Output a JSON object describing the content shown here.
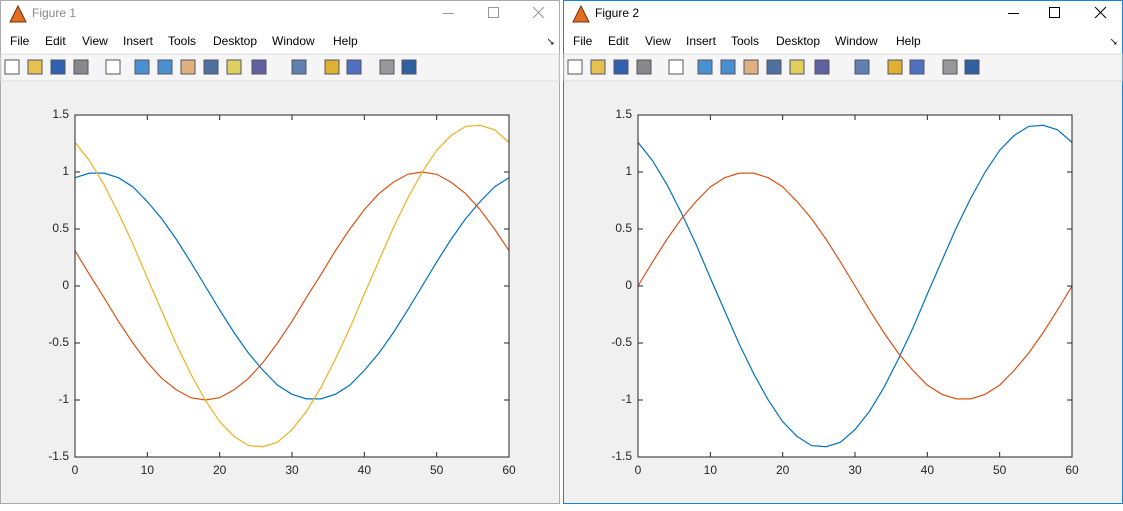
{
  "windows": [
    {
      "title": "Figure 1",
      "menu": [
        "File",
        "Edit",
        "View",
        "Insert",
        "Tools",
        "Desktop",
        "Window",
        "Help"
      ]
    },
    {
      "title": "Figure 2",
      "menu": [
        "File",
        "Edit",
        "View",
        "Insert",
        "Tools",
        "Desktop",
        "Window",
        "Help"
      ]
    }
  ],
  "chart_data": [
    {
      "type": "line",
      "x": [
        0,
        2,
        4,
        6,
        8,
        10,
        12,
        14,
        16,
        18,
        20,
        22,
        24,
        26,
        28,
        30,
        32,
        34,
        36,
        38,
        40,
        42,
        44,
        46,
        48,
        50,
        52,
        54,
        56,
        58,
        60
      ],
      "series": [
        {
          "color": "#0072BD",
          "values": [
            0.95,
            0.99,
            0.99,
            0.95,
            0.87,
            0.74,
            0.59,
            0.41,
            0.21,
            0,
            -0.21,
            -0.41,
            -0.59,
            -0.74,
            -0.87,
            -0.95,
            -0.99,
            -0.99,
            -0.95,
            -0.87,
            -0.74,
            -0.59,
            -0.41,
            -0.21,
            0,
            0.21,
            0.41,
            0.59,
            0.74,
            0.87,
            0.95
          ]
        },
        {
          "color": "#D95319",
          "values": [
            0.31,
            0.1,
            -0.1,
            -0.31,
            -0.5,
            -0.67,
            -0.81,
            -0.91,
            -0.98,
            -1,
            -0.98,
            -0.91,
            -0.81,
            -0.67,
            -0.5,
            -0.31,
            -0.1,
            0.1,
            0.31,
            0.5,
            0.67,
            0.81,
            0.91,
            0.98,
            1,
            0.98,
            0.91,
            0.81,
            0.67,
            0.5,
            0.31
          ]
        },
        {
          "color": "#EDB120",
          "values": [
            1.26,
            1.1,
            0.89,
            0.64,
            0.37,
            0.07,
            -0.22,
            -0.51,
            -0.77,
            -1,
            -1.19,
            -1.32,
            -1.4,
            -1.41,
            -1.37,
            -1.26,
            -1.1,
            -0.89,
            -0.64,
            -0.37,
            -0.07,
            0.22,
            0.51,
            0.77,
            1,
            1.19,
            1.32,
            1.4,
            1.41,
            1.37,
            1.26
          ]
        }
      ],
      "xlim": [
        0,
        60
      ],
      "xticks": [
        0,
        10,
        20,
        30,
        40,
        50,
        60
      ],
      "ylim": [
        -1.5,
        1.5
      ],
      "yticks": [
        -1.5,
        -1,
        -0.5,
        0,
        0.5,
        1,
        1.5
      ]
    },
    {
      "type": "line",
      "x": [
        0,
        2,
        4,
        6,
        8,
        10,
        12,
        14,
        16,
        18,
        20,
        22,
        24,
        26,
        28,
        30,
        32,
        34,
        36,
        38,
        40,
        42,
        44,
        46,
        48,
        50,
        52,
        54,
        56,
        58,
        60
      ],
      "series": [
        {
          "color": "#0072BD",
          "values": [
            1.26,
            1.1,
            0.89,
            0.64,
            0.37,
            0.07,
            -0.22,
            -0.51,
            -0.77,
            -1,
            -1.19,
            -1.32,
            -1.4,
            -1.41,
            -1.37,
            -1.26,
            -1.1,
            -0.89,
            -0.64,
            -0.37,
            -0.07,
            0.22,
            0.51,
            0.77,
            1,
            1.19,
            1.32,
            1.4,
            1.41,
            1.37,
            1.26
          ]
        },
        {
          "color": "#D95319",
          "values": [
            0,
            0.21,
            0.41,
            0.59,
            0.74,
            0.87,
            0.95,
            0.99,
            0.99,
            0.95,
            0.87,
            0.74,
            0.59,
            0.41,
            0.21,
            0,
            -0.21,
            -0.41,
            -0.59,
            -0.74,
            -0.87,
            -0.95,
            -0.99,
            -0.99,
            -0.95,
            -0.87,
            -0.74,
            -0.59,
            -0.41,
            -0.21,
            0
          ]
        }
      ],
      "xlim": [
        0,
        60
      ],
      "xticks": [
        0,
        10,
        20,
        30,
        40,
        50,
        60
      ],
      "ylim": [
        -1.5,
        1.5
      ],
      "yticks": [
        -1.5,
        -1,
        -0.5,
        0,
        0.5,
        1,
        1.5
      ]
    }
  ]
}
